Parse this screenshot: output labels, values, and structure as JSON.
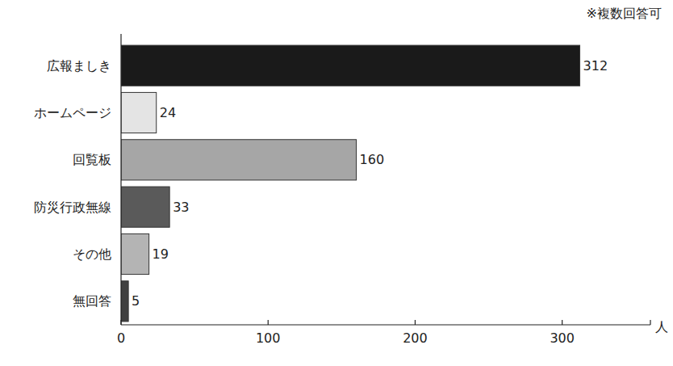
{
  "chart_data": {
    "type": "bar",
    "orientation": "horizontal",
    "categories": [
      "広報ましき",
      "ホームページ",
      "回覧板",
      "防災行政無線",
      "その他",
      "無回答"
    ],
    "values": [
      312,
      24,
      160,
      33,
      19,
      5
    ],
    "colors": [
      "#1a1a1a",
      "#e4e4e4",
      "#a6a6a6",
      "#5a5a5a",
      "#b4b4b4",
      "#404040"
    ],
    "xlim": [
      0,
      360
    ],
    "xticks": [
      0,
      100,
      200,
      300
    ],
    "x_label": "人",
    "annotations": [
      "※複数回答可"
    ],
    "data_labels": true,
    "grid": false
  }
}
